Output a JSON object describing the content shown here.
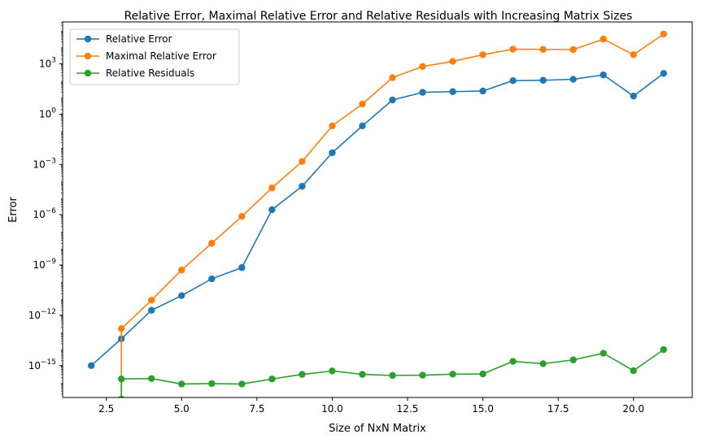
{
  "chart_data": {
    "type": "line",
    "title": "Relative Error, Maximal Relative Error and Relative Residuals with Increasing Matrix Sizes",
    "xlabel": "Size of NxN Matrix",
    "ylabel": "Error",
    "yscale": "log",
    "xlim": [
      1.05,
      21.95
    ],
    "ylim_log10": [
      -16.9,
      5.5
    ],
    "x_ticks": [
      2.5,
      5.0,
      7.5,
      10.0,
      12.5,
      15.0,
      17.5,
      20.0
    ],
    "x_tick_labels": [
      "2.5",
      "5.0",
      "7.5",
      "10.0",
      "12.5",
      "15.0",
      "17.5",
      "20.0"
    ],
    "y_ticks_log10": [
      -15,
      -12,
      -9,
      -6,
      -3,
      0,
      3
    ],
    "y_tick_labels": [
      {
        "base": "10",
        "exp": "−15"
      },
      {
        "base": "10",
        "exp": "−12"
      },
      {
        "base": "10",
        "exp": "−9"
      },
      {
        "base": "10",
        "exp": "−6"
      },
      {
        "base": "10",
        "exp": "−3"
      },
      {
        "base": "10",
        "exp": "0"
      },
      {
        "base": "10",
        "exp": "3"
      }
    ],
    "grid": false,
    "legend_position": "top-left",
    "series": [
      {
        "name": "Relative Error",
        "color": "#1f77b4",
        "x": [
          2,
          3,
          4,
          5,
          6,
          7,
          8,
          9,
          10,
          11,
          12,
          13,
          14,
          15,
          16,
          17,
          18,
          19,
          20,
          21
        ],
        "y": [
          1e-15,
          4e-14,
          2e-12,
          1.5e-11,
          1.5e-10,
          7e-10,
          2e-06,
          5e-05,
          0.005,
          0.2,
          7,
          20,
          22,
          24,
          100,
          105,
          120,
          220,
          12,
          270
        ]
      },
      {
        "name": "Maximal Relative Error",
        "color": "#ff7f0e",
        "x": [
          3,
          3,
          4,
          5,
          6,
          7,
          8,
          9,
          10,
          11,
          12,
          13,
          14,
          15,
          16,
          17,
          18,
          19,
          20,
          21
        ],
        "y": [
          1e-17,
          1.6e-13,
          8e-12,
          5e-10,
          2e-08,
          8e-07,
          4e-05,
          0.0015,
          0.2,
          4,
          150,
          700,
          1400,
          3500,
          7500,
          7300,
          7100,
          30000,
          3500,
          60000
        ]
      },
      {
        "name": "Relative Residuals",
        "color": "#2ca02c",
        "x": [
          3,
          3,
          4,
          5,
          6,
          7,
          8,
          9,
          10,
          11,
          12,
          13,
          14,
          15,
          16,
          17,
          18,
          19,
          20,
          21
        ],
        "y": [
          1e-17,
          1.6e-16,
          1.7e-16,
          8e-17,
          8.5e-17,
          8e-17,
          1.6e-16,
          3e-16,
          4.8e-16,
          3e-16,
          2.6e-16,
          2.7e-16,
          3.1e-16,
          3.2e-16,
          1.8e-15,
          1.3e-15,
          2.2e-15,
          5.5e-15,
          5e-16,
          9e-15
        ]
      }
    ]
  }
}
